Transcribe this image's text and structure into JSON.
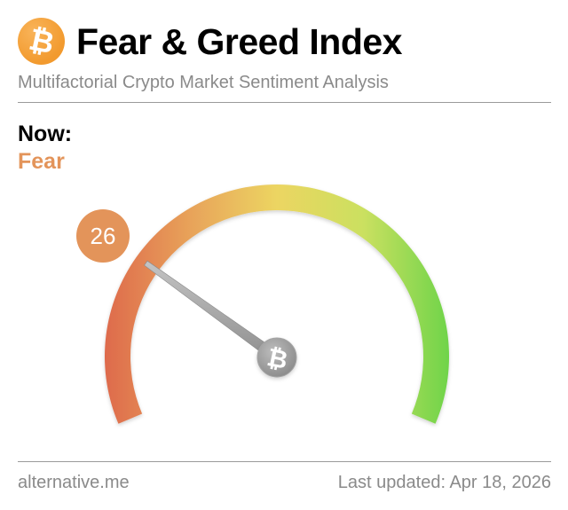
{
  "header": {
    "logo_icon": "bitcoin-icon",
    "logo_glyph": "₿",
    "title": "Fear & Greed Index",
    "subtitle": "Multifactorial Crypto Market Sentiment Analysis"
  },
  "status": {
    "now_label": "Now:",
    "classification": "Fear",
    "value": "26",
    "classification_color": "#e3945a"
  },
  "gauge": {
    "min": 0,
    "max": 100,
    "value": 26,
    "needle_color": "#a0a0a0",
    "hub_icon": "bitcoin-icon",
    "hub_glyph": "₿",
    "gradient_stops": [
      "#de6a4c",
      "#e8a35a",
      "#ecd562",
      "#cbe060",
      "#6fd44a"
    ]
  },
  "footer": {
    "source": "alternative.me",
    "last_updated": "Last updated: Apr 18, 2026"
  }
}
